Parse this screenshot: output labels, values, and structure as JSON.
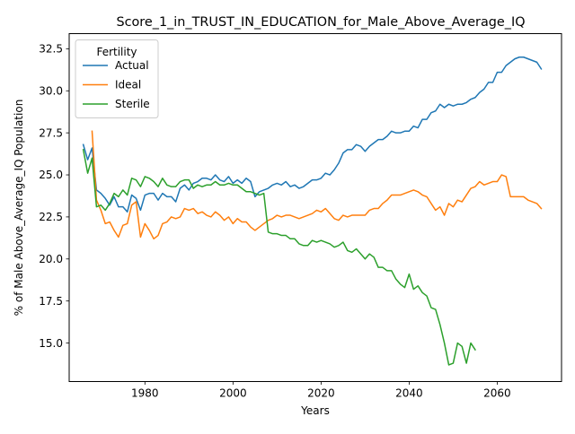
{
  "chart_data": {
    "type": "line",
    "title": "Score_1_in_TRUST_IN_EDUCATION_for_Male_Above_Average_IQ",
    "xlabel": "Years",
    "ylabel": "% of Male Above_Average_IQ Population",
    "xlim": [
      1962.8,
      2074.6
    ],
    "ylim": [
      12.71,
      33.4
    ],
    "xticks": [
      1980,
      2000,
      2020,
      2040,
      2060
    ],
    "yticks": [
      15.0,
      17.5,
      20.0,
      22.5,
      25.0,
      27.5,
      30.0,
      32.5
    ],
    "ytick_labels": [
      "15.0",
      "17.5",
      "20.0",
      "22.5",
      "25.0",
      "27.5",
      "30.0",
      "32.5"
    ],
    "grid": false,
    "legend": {
      "title": "Fertility",
      "position": "top-left"
    },
    "series": [
      {
        "name": "Actual",
        "color": "#1f77b4",
        "x": [
          1966,
          1967,
          1968,
          1969,
          1970,
          1971,
          1972,
          1973,
          1974,
          1975,
          1976,
          1977,
          1978,
          1979,
          1980,
          1981,
          1982,
          1983,
          1984,
          1985,
          1986,
          1987,
          1988,
          1989,
          1990,
          1991,
          1992,
          1993,
          1994,
          1995,
          1996,
          1997,
          1998,
          1999,
          2000,
          2001,
          2002,
          2003,
          2004,
          2005,
          2006,
          2007,
          2008,
          2009,
          2010,
          2011,
          2012,
          2013,
          2014,
          2015,
          2016,
          2017,
          2018,
          2019,
          2020,
          2021,
          2022,
          2023,
          2024,
          2025,
          2026,
          2027,
          2028,
          2029,
          2030,
          2031,
          2032,
          2033,
          2034,
          2035,
          2036,
          2037,
          2038,
          2039,
          2040,
          2041,
          2042,
          2043,
          2044,
          2045,
          2046,
          2047,
          2048,
          2049,
          2050,
          2051,
          2052,
          2053,
          2054,
          2055,
          2056,
          2057,
          2058,
          2059,
          2060,
          2061,
          2062,
          2063,
          2064,
          2065,
          2066,
          2067,
          2068,
          2069,
          2070
        ],
        "values": [
          26.8,
          25.9,
          26.6,
          24.1,
          23.9,
          23.6,
          23.2,
          23.7,
          23.1,
          23.1,
          22.8,
          23.8,
          23.6,
          22.9,
          23.8,
          23.9,
          23.9,
          23.5,
          23.9,
          23.7,
          23.7,
          23.4,
          24.2,
          24.4,
          24.1,
          24.5,
          24.6,
          24.8,
          24.8,
          24.7,
          25.0,
          24.7,
          24.6,
          24.9,
          24.5,
          24.7,
          24.5,
          24.8,
          24.6,
          23.7,
          24.0,
          24.1,
          24.2,
          24.4,
          24.5,
          24.4,
          24.6,
          24.3,
          24.4,
          24.2,
          24.3,
          24.5,
          24.7,
          24.7,
          24.8,
          25.1,
          25.0,
          25.3,
          25.7,
          26.3,
          26.5,
          26.5,
          26.8,
          26.7,
          26.4,
          26.7,
          26.9,
          27.1,
          27.1,
          27.3,
          27.6,
          27.5,
          27.5,
          27.6,
          27.6,
          27.9,
          27.8,
          28.3,
          28.3,
          28.7,
          28.8,
          29.2,
          29.0,
          29.2,
          29.1,
          29.2,
          29.2,
          29.3,
          29.5,
          29.6,
          29.9,
          30.1,
          30.5,
          30.5,
          31.1,
          31.1,
          31.5,
          31.7,
          31.9,
          32.0,
          32.0,
          31.9,
          31.8,
          31.7,
          31.3
        ]
      },
      {
        "name": "Ideal",
        "color": "#ff7f0e",
        "x": [
          1968,
          1969,
          1970,
          1971,
          1972,
          1973,
          1974,
          1975,
          1976,
          1977,
          1978,
          1979,
          1980,
          1981,
          1982,
          1983,
          1984,
          1985,
          1986,
          1987,
          1988,
          1989,
          1990,
          1991,
          1992,
          1993,
          1994,
          1995,
          1996,
          1997,
          1998,
          1999,
          2000,
          2001,
          2002,
          2003,
          2004,
          2005,
          2006,
          2007,
          2008,
          2009,
          2010,
          2011,
          2012,
          2013,
          2014,
          2015,
          2016,
          2017,
          2018,
          2019,
          2020,
          2021,
          2022,
          2023,
          2024,
          2025,
          2026,
          2027,
          2028,
          2029,
          2030,
          2031,
          2032,
          2033,
          2034,
          2035,
          2036,
          2037,
          2038,
          2039,
          2040,
          2041,
          2042,
          2043,
          2044,
          2045,
          2046,
          2047,
          2048,
          2049,
          2050,
          2051,
          2052,
          2053,
          2054,
          2055,
          2056,
          2057,
          2058,
          2059,
          2060,
          2061,
          2062,
          2063,
          2064,
          2065,
          2066,
          2067,
          2068,
          2069,
          2070
        ],
        "values": [
          27.6,
          23.5,
          22.9,
          22.1,
          22.2,
          21.7,
          21.3,
          22.0,
          22.1,
          23.2,
          23.4,
          21.3,
          22.1,
          21.7,
          21.2,
          21.4,
          22.1,
          22.2,
          22.5,
          22.4,
          22.5,
          23.0,
          22.9,
          23.0,
          22.7,
          22.8,
          22.6,
          22.5,
          22.8,
          22.6,
          22.3,
          22.5,
          22.1,
          22.4,
          22.2,
          22.2,
          21.9,
          21.7,
          21.9,
          22.1,
          22.3,
          22.4,
          22.6,
          22.5,
          22.6,
          22.6,
          22.5,
          22.4,
          22.5,
          22.6,
          22.7,
          22.9,
          22.8,
          23.0,
          22.7,
          22.4,
          22.3,
          22.6,
          22.5,
          22.6,
          22.6,
          22.6,
          22.6,
          22.9,
          23.0,
          23.0,
          23.3,
          23.5,
          23.8,
          23.8,
          23.8,
          23.9,
          24.0,
          24.1,
          24.0,
          23.8,
          23.7,
          23.3,
          22.9,
          23.1,
          22.6,
          23.3,
          23.1,
          23.5,
          23.4,
          23.8,
          24.2,
          24.3,
          24.6,
          24.4,
          24.5,
          24.6,
          24.6,
          25.0,
          24.9,
          23.7,
          23.7,
          23.7,
          23.7,
          23.5,
          23.4,
          23.3,
          23.0
        ]
      },
      {
        "name": "Sterile",
        "color": "#2ca02c",
        "x": [
          1966,
          1967,
          1968,
          1969,
          1970,
          1971,
          1972,
          1973,
          1974,
          1975,
          1976,
          1977,
          1978,
          1979,
          1980,
          1981,
          1982,
          1983,
          1984,
          1985,
          1986,
          1987,
          1988,
          1989,
          1990,
          1991,
          1992,
          1993,
          1994,
          1995,
          1996,
          1997,
          1998,
          1999,
          2000,
          2001,
          2002,
          2003,
          2004,
          2005,
          2006,
          2007,
          2008,
          2009,
          2010,
          2011,
          2012,
          2013,
          2014,
          2015,
          2016,
          2017,
          2018,
          2019,
          2020,
          2021,
          2022,
          2023,
          2024,
          2025,
          2026,
          2027,
          2028,
          2029,
          2030,
          2031,
          2032,
          2033,
          2034,
          2035,
          2036,
          2037,
          2038,
          2039,
          2040,
          2041,
          2042,
          2043,
          2044,
          2045,
          2046,
          2047,
          2048,
          2049,
          2050,
          2051,
          2052,
          2053,
          2054,
          2055
        ],
        "values": [
          26.5,
          25.1,
          26.0,
          23.1,
          23.2,
          22.9,
          23.3,
          23.9,
          23.7,
          24.1,
          23.8,
          24.8,
          24.7,
          24.3,
          24.9,
          24.8,
          24.6,
          24.3,
          24.8,
          24.4,
          24.3,
          24.3,
          24.6,
          24.7,
          24.7,
          24.2,
          24.4,
          24.3,
          24.4,
          24.4,
          24.6,
          24.4,
          24.4,
          24.5,
          24.4,
          24.4,
          24.2,
          24.0,
          24.0,
          23.9,
          23.8,
          23.9,
          21.6,
          21.5,
          21.5,
          21.4,
          21.4,
          21.2,
          21.2,
          20.9,
          20.8,
          20.8,
          21.1,
          21.0,
          21.1,
          21.0,
          20.9,
          20.7,
          20.8,
          21.0,
          20.5,
          20.4,
          20.6,
          20.3,
          20.0,
          20.3,
          20.1,
          19.5,
          19.5,
          19.3,
          19.3,
          18.8,
          18.5,
          18.3,
          19.1,
          18.2,
          18.4,
          18.0,
          17.8,
          17.1,
          17.0,
          16.1,
          15.0,
          13.7,
          13.8,
          15.0,
          14.8,
          13.8,
          15.0,
          14.6
        ]
      }
    ]
  }
}
